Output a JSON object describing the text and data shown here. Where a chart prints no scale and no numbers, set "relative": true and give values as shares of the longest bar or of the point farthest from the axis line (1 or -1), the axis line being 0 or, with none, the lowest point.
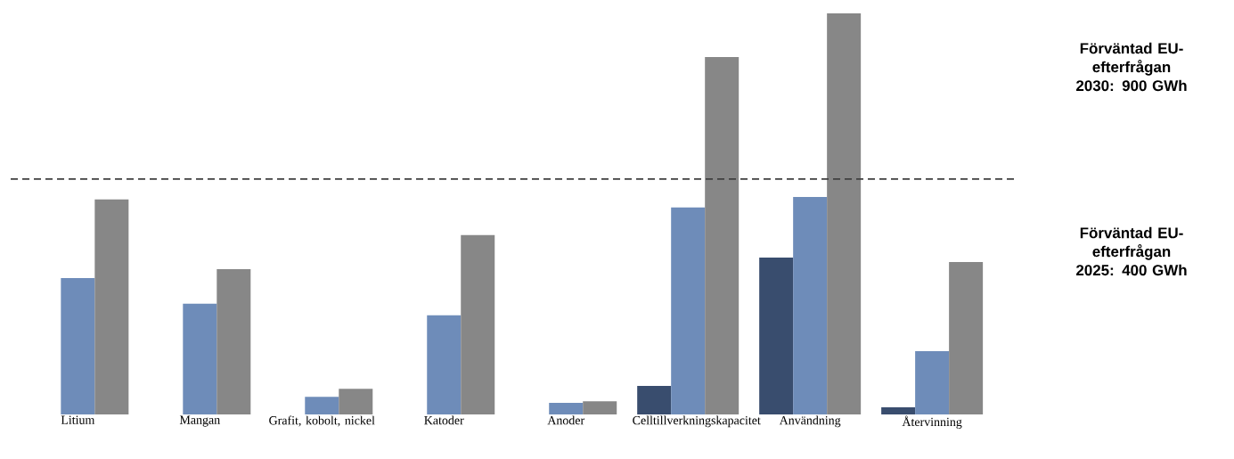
{
  "chart_data": {
    "type": "bar",
    "relative": true,
    "categories": [
      "Litium",
      "Mangan",
      "Grafit, kobolt, nickel",
      "Katoder",
      "Anoder",
      "Celltillverkningskapacitet",
      "Användning",
      "Återvinning"
    ],
    "series": [
      {
        "color": "#394d6e",
        "values": [
          null,
          null,
          null,
          null,
          null,
          0.071,
          0.391,
          0.018
        ]
      },
      {
        "color": "#6e8cb9",
        "values": [
          0.34,
          0.276,
          0.044,
          0.247,
          0.029,
          0.516,
          0.542,
          0.158
        ]
      },
      {
        "color": "#878787",
        "values": [
          0.536,
          0.362,
          0.064,
          0.447,
          0.033,
          0.891,
          1,
          0.38
        ]
      }
    ],
    "ref_lines": [
      {
        "axis": "y",
        "value": 0.587,
        "line_style": "dashed",
        "color": "#404040"
      }
    ],
    "annotations": [
      "Förväntad EU-efterfrågan 2030: 900 GWh",
      "Förväntad EU-efterfrågan 2025: 400 GWh"
    ]
  }
}
